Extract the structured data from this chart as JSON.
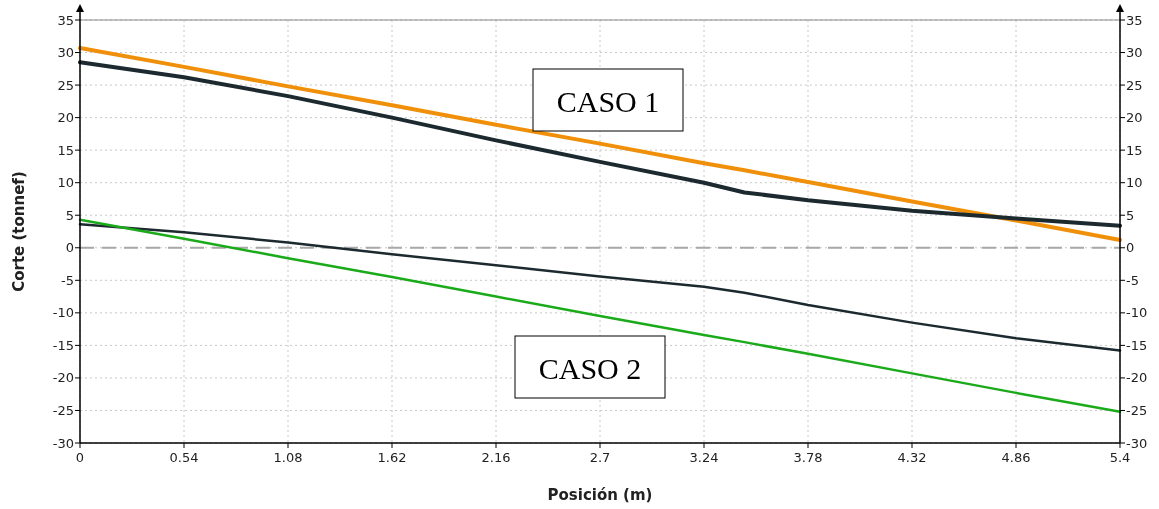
{
  "chart_data": {
    "type": "line",
    "xlabel": "Posición (m)",
    "ylabel": "Corte (tonnef)",
    "x": [
      0,
      0.54,
      1.08,
      1.62,
      2.16,
      2.7,
      3.24,
      3.45,
      3.78,
      4.32,
      4.86,
      5.4
    ],
    "series": [
      {
        "color": "#f0900a",
        "values": [
          30.7,
          27.8,
          24.8,
          21.9,
          18.9,
          16.0,
          13.0,
          11.9,
          10.1,
          7.1,
          4.2,
          1.2
        ]
      },
      {
        "color": "#1c2a30",
        "values": [
          28.5,
          26.2,
          23.3,
          20.0,
          16.5,
          13.2,
          10.0,
          8.5,
          7.3,
          5.7,
          4.5,
          3.4
        ]
      },
      {
        "color": "#1c2a30",
        "values": [
          3.6,
          2.4,
          0.8,
          -1.0,
          -2.7,
          -4.4,
          -6.0,
          -6.9,
          -8.8,
          -11.5,
          -13.9,
          -15.8
        ]
      },
      {
        "color": "#1aaa1a",
        "values": [
          4.3,
          1.4,
          -1.6,
          -4.5,
          -7.5,
          -10.5,
          -13.4,
          -14.5,
          -16.3,
          -19.3,
          -22.3,
          -25.2
        ]
      }
    ],
    "xlim": [
      0,
      5.4
    ],
    "xticks": [
      0,
      0.54,
      1.08,
      1.62,
      2.16,
      2.7,
      3.24,
      3.78,
      4.32,
      4.86,
      5.4
    ],
    "ylim": [
      -30,
      35
    ],
    "yticks": [
      -30,
      -25,
      -20,
      -15,
      -10,
      -5,
      0,
      5,
      10,
      15,
      20,
      25,
      30,
      35
    ],
    "y2lim": [
      -30,
      35
    ],
    "y2ticks": [
      -30,
      -25,
      -20,
      -15,
      -10,
      -5,
      0,
      5,
      10,
      15,
      20,
      25,
      30,
      35
    ],
    "grid": true,
    "marker": "none",
    "line_style": "solid",
    "ref_lines": [
      {
        "axis": "y",
        "value": 0,
        "color": "#a8a8a8",
        "line_style": "dashed"
      }
    ],
    "annotations": [
      "CASO 1",
      "CASO 2"
    ]
  }
}
